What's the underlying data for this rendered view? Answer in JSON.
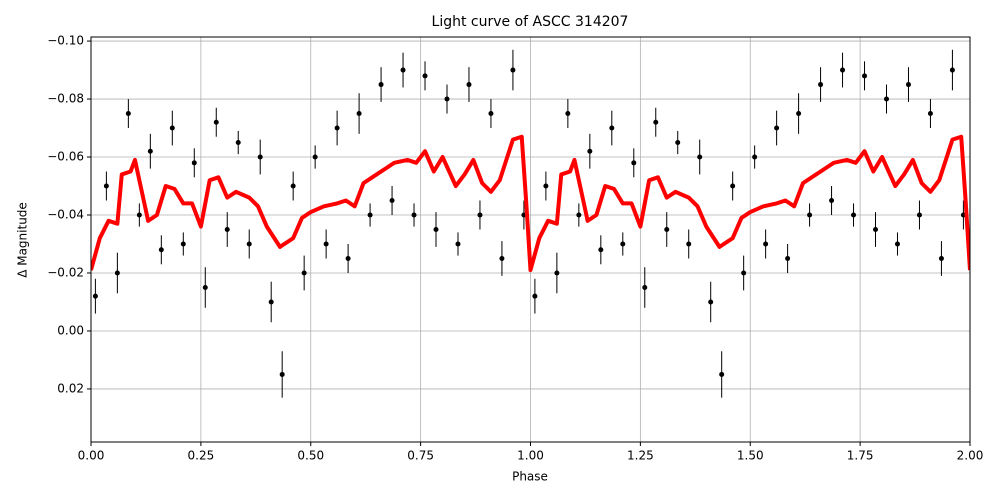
{
  "chart_data": {
    "type": "scatter",
    "title": "Light curve of ASCC 314207",
    "xlabel": "Phase",
    "ylabel": "Δ Magnitude",
    "xlim": [
      0,
      2
    ],
    "ylim": [
      -0.1014,
      0.0383
    ],
    "invert_y": true,
    "grid": true,
    "xticks": [
      {
        "value": 0,
        "label": "0.00"
      },
      0.25,
      {
        "value": 0.5,
        "label": "0.50"
      },
      0.75,
      {
        "value": 1,
        "label": "1.00"
      },
      1.25,
      {
        "value": 1.5,
        "label": "1.50"
      },
      1.75,
      {
        "value": 2,
        "label": "2.00"
      }
    ],
    "yticks": [
      {
        "value": -0.1,
        "label": "−0.10"
      },
      {
        "value": -0.08,
        "label": "−0.08"
      },
      {
        "value": -0.06,
        "label": "−0.06"
      },
      {
        "value": -0.04,
        "label": "−0.04"
      },
      {
        "value": -0.02,
        "label": "−0.02"
      },
      {
        "value": 0,
        "label": "0.00"
      },
      0.02
    ],
    "series": [
      {
        "type": "errorbar",
        "color": "#000000",
        "x": [
          0.01,
          0.035,
          0.06,
          0.085,
          0.11,
          0.135,
          0.16,
          0.185,
          0.21,
          0.235,
          0.26,
          0.285,
          0.31,
          0.335,
          0.36,
          0.385,
          0.41,
          0.435,
          0.46,
          0.485,
          0.51,
          0.535,
          0.56,
          0.585,
          0.61,
          0.635,
          0.66,
          0.685,
          0.71,
          0.735,
          0.76,
          0.785,
          0.81,
          0.835,
          0.86,
          0.885,
          0.91,
          0.935,
          0.96,
          0.985,
          1.01,
          1.035,
          1.06,
          1.085,
          1.11,
          1.135,
          1.16,
          1.185,
          1.21,
          1.235,
          1.26,
          1.285,
          1.31,
          1.335,
          1.36,
          1.385,
          1.41,
          1.435,
          1.46,
          1.485,
          1.51,
          1.535,
          1.56,
          1.585,
          1.61,
          1.635,
          1.66,
          1.685,
          1.71,
          1.735,
          1.76,
          1.785,
          1.81,
          1.835,
          1.86,
          1.885,
          1.91,
          1.935,
          1.96,
          1.985
        ],
        "values": [
          -0.012,
          -0.05,
          -0.02,
          -0.075,
          -0.04,
          -0.062,
          -0.028,
          -0.07,
          -0.03,
          -0.058,
          -0.015,
          -0.072,
          -0.035,
          -0.065,
          -0.03,
          -0.06,
          -0.01,
          0.015,
          -0.05,
          -0.02,
          -0.06,
          -0.03,
          -0.07,
          -0.025,
          -0.075,
          -0.04,
          -0.085,
          -0.045,
          -0.09,
          -0.04,
          -0.088,
          -0.035,
          -0.08,
          -0.03,
          -0.085,
          -0.04,
          -0.075,
          -0.025,
          -0.09,
          -0.04,
          -0.012,
          -0.05,
          -0.02,
          -0.075,
          -0.04,
          -0.062,
          -0.028,
          -0.07,
          -0.03,
          -0.058,
          -0.015,
          -0.072,
          -0.035,
          -0.065,
          -0.03,
          -0.06,
          -0.01,
          0.015,
          -0.05,
          -0.02,
          -0.06,
          -0.03,
          -0.07,
          -0.025,
          -0.075,
          -0.04,
          -0.085,
          -0.045,
          -0.09,
          -0.04,
          -0.088,
          -0.035,
          -0.08,
          -0.03,
          -0.085,
          -0.04,
          -0.075,
          -0.025,
          -0.09,
          -0.04
        ],
        "errors": [
          0.006,
          0.005,
          0.007,
          0.005,
          0.004,
          0.006,
          0.005,
          0.006,
          0.004,
          0.005,
          0.007,
          0.005,
          0.006,
          0.004,
          0.005,
          0.006,
          0.007,
          0.008,
          0.005,
          0.006,
          0.004,
          0.005,
          0.006,
          0.005,
          0.007,
          0.004,
          0.006,
          0.005,
          0.006,
          0.004,
          0.005,
          0.006,
          0.005,
          0.004,
          0.006,
          0.005,
          0.005,
          0.006,
          0.007,
          0.005,
          0.006,
          0.005,
          0.007,
          0.005,
          0.004,
          0.006,
          0.005,
          0.006,
          0.004,
          0.005,
          0.007,
          0.005,
          0.006,
          0.004,
          0.005,
          0.006,
          0.007,
          0.008,
          0.005,
          0.006,
          0.004,
          0.005,
          0.006,
          0.005,
          0.007,
          0.004,
          0.006,
          0.005,
          0.006,
          0.004,
          0.005,
          0.006,
          0.005,
          0.004,
          0.006,
          0.005,
          0.005,
          0.006,
          0.007,
          0.005
        ]
      },
      {
        "type": "line",
        "color": "#ff0000",
        "x": [
          0,
          0.02,
          0.04,
          0.06,
          0.07,
          0.09,
          0.1,
          0.12,
          0.13,
          0.15,
          0.17,
          0.19,
          0.21,
          0.23,
          0.25,
          0.27,
          0.29,
          0.31,
          0.33,
          0.36,
          0.38,
          0.4,
          0.43,
          0.46,
          0.48,
          0.5,
          0.53,
          0.56,
          0.58,
          0.6,
          0.62,
          0.64,
          0.67,
          0.69,
          0.72,
          0.74,
          0.76,
          0.78,
          0.8,
          0.83,
          0.85,
          0.87,
          0.89,
          0.91,
          0.93,
          0.96,
          0.98,
          0.99,
          1,
          1.02,
          1.04,
          1.06,
          1.07,
          1.09,
          1.1,
          1.12,
          1.13,
          1.15,
          1.17,
          1.19,
          1.21,
          1.23,
          1.25,
          1.27,
          1.29,
          1.31,
          1.33,
          1.36,
          1.38,
          1.4,
          1.43,
          1.46,
          1.48,
          1.5,
          1.53,
          1.56,
          1.58,
          1.6,
          1.62,
          1.64,
          1.67,
          1.69,
          1.72,
          1.74,
          1.76,
          1.78,
          1.8,
          1.83,
          1.85,
          1.87,
          1.89,
          1.91,
          1.93,
          1.96,
          1.98,
          1.99,
          2
        ],
        "values": [
          -0.021,
          -0.032,
          -0.038,
          -0.037,
          -0.054,
          -0.055,
          -0.059,
          -0.045,
          -0.038,
          -0.04,
          -0.05,
          -0.049,
          -0.044,
          -0.044,
          -0.036,
          -0.052,
          -0.053,
          -0.046,
          -0.048,
          -0.046,
          -0.043,
          -0.036,
          -0.029,
          -0.032,
          -0.039,
          -0.041,
          -0.043,
          -0.044,
          -0.045,
          -0.043,
          -0.051,
          -0.053,
          -0.056,
          -0.058,
          -0.059,
          -0.058,
          -0.062,
          -0.055,
          -0.06,
          -0.05,
          -0.054,
          -0.059,
          -0.051,
          -0.048,
          -0.052,
          -0.066,
          -0.067,
          -0.045,
          -0.021,
          -0.032,
          -0.038,
          -0.037,
          -0.054,
          -0.055,
          -0.059,
          -0.045,
          -0.038,
          -0.04,
          -0.05,
          -0.049,
          -0.044,
          -0.044,
          -0.036,
          -0.052,
          -0.053,
          -0.046,
          -0.048,
          -0.046,
          -0.043,
          -0.036,
          -0.029,
          -0.032,
          -0.039,
          -0.041,
          -0.043,
          -0.044,
          -0.045,
          -0.043,
          -0.051,
          -0.053,
          -0.056,
          -0.058,
          -0.059,
          -0.058,
          -0.062,
          -0.055,
          -0.06,
          -0.05,
          -0.054,
          -0.059,
          -0.051,
          -0.048,
          -0.052,
          -0.066,
          -0.067,
          -0.045,
          -0.021
        ]
      }
    ]
  }
}
